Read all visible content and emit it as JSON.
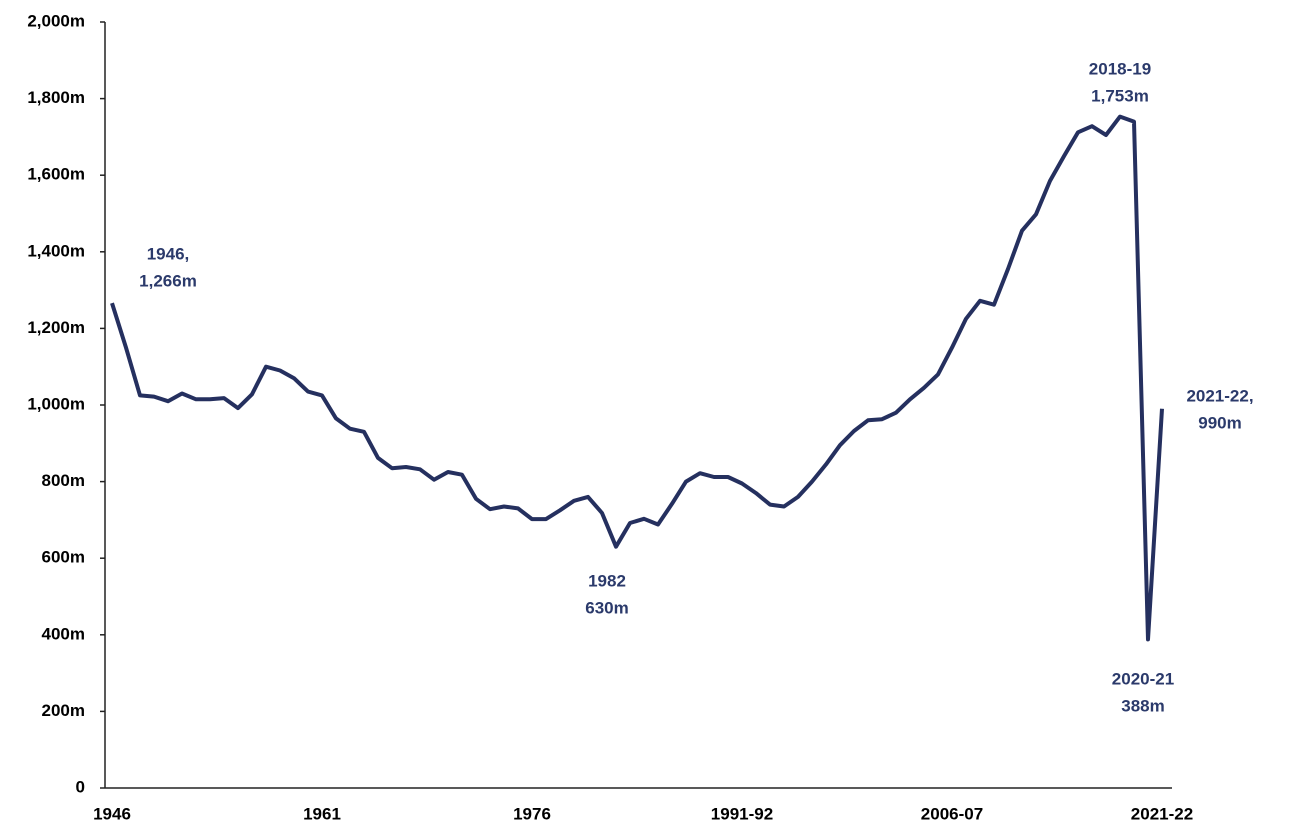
{
  "chart_data": {
    "type": "line",
    "categories": [
      "1946",
      null,
      null,
      null,
      null,
      null,
      null,
      null,
      null,
      null,
      null,
      null,
      null,
      null,
      null,
      "1961",
      null,
      null,
      null,
      null,
      null,
      null,
      null,
      null,
      null,
      null,
      null,
      null,
      null,
      null,
      "1976",
      null,
      null,
      null,
      null,
      null,
      null,
      null,
      null,
      null,
      null,
      null,
      null,
      null,
      null,
      "1991-92",
      null,
      null,
      null,
      null,
      null,
      null,
      null,
      null,
      null,
      null,
      null,
      null,
      null,
      null,
      "2006-07",
      null,
      null,
      null,
      null,
      null,
      null,
      null,
      null,
      null,
      null,
      null,
      null,
      null,
      null,
      "2021-22"
    ],
    "values": [
      1266,
      1150,
      1025,
      1022,
      1010,
      1030,
      1015,
      1015,
      1018,
      992,
      1028,
      1100,
      1090,
      1070,
      1035,
      1025,
      965,
      938,
      930,
      862,
      835,
      838,
      832,
      805,
      825,
      818,
      755,
      728,
      735,
      730,
      702,
      702,
      725,
      750,
      760,
      718,
      630,
      692,
      703,
      688,
      742,
      800,
      822,
      812,
      812,
      795,
      770,
      740,
      735,
      760,
      800,
      845,
      895,
      932,
      960,
      963,
      980,
      1015,
      1045,
      1080,
      1150,
      1225,
      1272,
      1262,
      1355,
      1455,
      1498,
      1585,
      1650,
      1712,
      1728,
      1705,
      1753,
      1740,
      388,
      990
    ],
    "color": "#25305f",
    "ylim": [
      0,
      2000
    ],
    "yticks": [
      0,
      {
        "value": 200,
        "label": "200m"
      },
      {
        "value": 400,
        "label": "400m"
      },
      {
        "value": 600,
        "label": "600m"
      },
      {
        "value": 800,
        "label": "800m"
      },
      {
        "value": 1000,
        "label": "1,000m"
      },
      {
        "value": 1200,
        "label": "1,200m"
      },
      {
        "value": 1400,
        "label": "1,400m"
      },
      {
        "value": 1600,
        "label": "1,600m"
      },
      {
        "value": 1800,
        "label": "1,800m"
      },
      {
        "value": 2000,
        "label": "2,000m"
      }
    ],
    "grid": false,
    "annotations": [
      [
        "1946,",
        "1,266m"
      ],
      [
        "1982",
        "630m"
      ],
      [
        "2018-19",
        "1,753m"
      ],
      [
        "2020-21",
        "388m"
      ],
      [
        "2021-22,",
        "990m"
      ]
    ]
  }
}
